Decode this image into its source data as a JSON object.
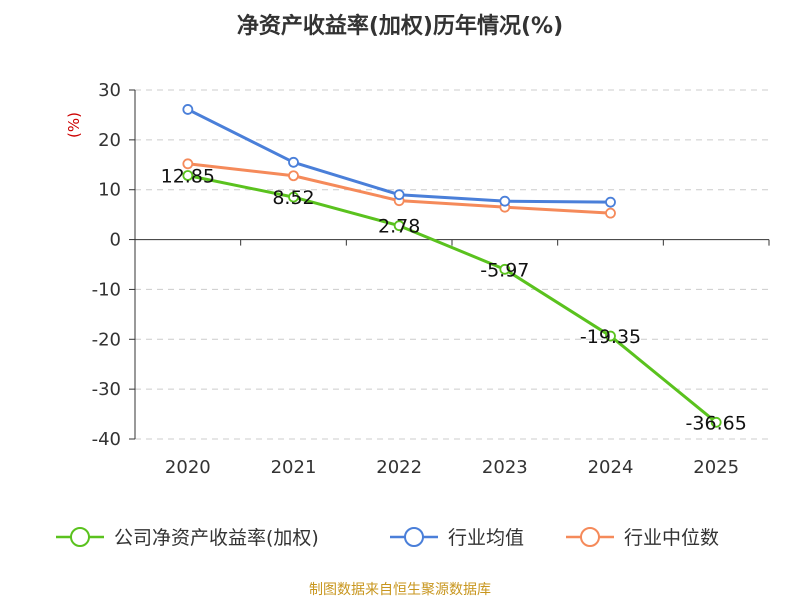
{
  "chart_data": {
    "type": "line",
    "title": "净资产收益率(加权)历年情况(%)",
    "xlabel": "",
    "ylabel": "(%)",
    "categories": [
      "2020",
      "2021",
      "2022",
      "2023",
      "2024",
      "2025"
    ],
    "ylim": [
      -40,
      30
    ],
    "yticks": [
      30,
      20,
      10,
      0,
      -10,
      -20,
      -30,
      -40
    ],
    "grid": true,
    "legend_position": "bottom",
    "series": [
      {
        "name": "公司净资产收益率(加权)",
        "color": "#5ac21e",
        "values": [
          12.85,
          8.52,
          2.78,
          -5.97,
          -19.35,
          -36.65
        ],
        "labels": [
          "12.85",
          "8.52",
          "2.78",
          "-5.97",
          "-19.35",
          "-36.65"
        ]
      },
      {
        "name": "行业均值",
        "color": "#4a7fd9",
        "values": [
          26.1,
          15.5,
          9.0,
          7.7,
          7.5,
          null
        ]
      },
      {
        "name": "行业中位数",
        "color": "#f58a5a",
        "values": [
          15.2,
          12.8,
          7.8,
          6.5,
          5.3,
          null
        ]
      }
    ],
    "source": "制图数据来自恒生聚源数据库",
    "ylabel_color": "#cc0000",
    "source_color": "#c8961e"
  }
}
